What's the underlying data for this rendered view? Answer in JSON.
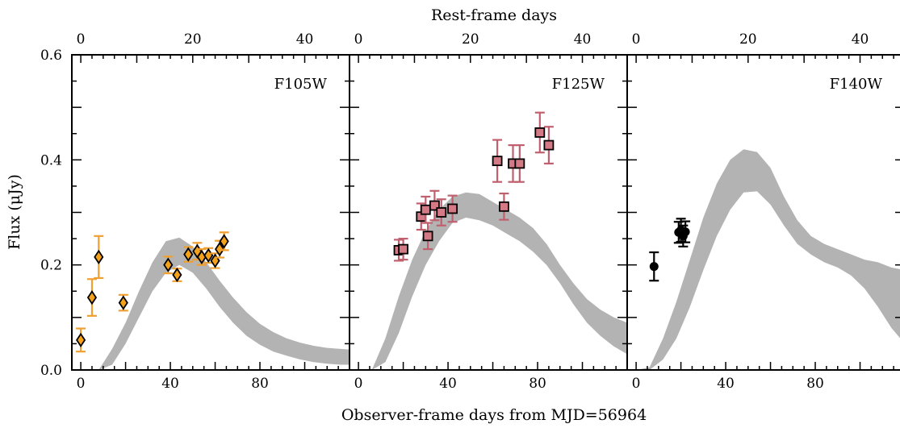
{
  "chart_data": {
    "type": "scatter",
    "xlabel": "Observer-frame days from MJD=56964",
    "xlabel_top": "Rest-frame days",
    "ylabel": "Flux (μJy)",
    "ylim": [
      0.0,
      0.6
    ],
    "yticks": [
      0.0,
      0.2,
      0.4,
      0.6
    ],
    "ytick_labels": [
      "0.0",
      "0.2",
      "0.4",
      "0.6"
    ],
    "xlim": [
      -4,
      120
    ],
    "xticks": [
      0,
      40,
      80
    ],
    "xtick_labels": [
      "0",
      "40",
      "80"
    ],
    "rest_frame_factor": 0.4,
    "xticks_top": [
      0,
      20,
      40
    ],
    "xtick_top_labels": [
      "0",
      "20",
      "40"
    ],
    "panels": [
      {
        "label": "F105W",
        "marker": "diamond",
        "marker_color": "#f5a21b",
        "errorbar_color": "#f0a030",
        "points": [
          {
            "x": 0,
            "y": 0.057,
            "err": 0.022
          },
          {
            "x": 5,
            "y": 0.138,
            "err": 0.035
          },
          {
            "x": 8,
            "y": 0.215,
            "err": 0.04
          },
          {
            "x": 19,
            "y": 0.128,
            "err": 0.015
          },
          {
            "x": 39,
            "y": 0.2,
            "err": 0.016
          },
          {
            "x": 43,
            "y": 0.181,
            "err": 0.012
          },
          {
            "x": 48,
            "y": 0.22,
            "err": 0.014
          },
          {
            "x": 52,
            "y": 0.226,
            "err": 0.016
          },
          {
            "x": 54,
            "y": 0.215,
            "err": 0.015
          },
          {
            "x": 57,
            "y": 0.218,
            "err": 0.014
          },
          {
            "x": 60,
            "y": 0.208,
            "err": 0.014
          },
          {
            "x": 62,
            "y": 0.23,
            "err": 0.016
          },
          {
            "x": 64,
            "y": 0.245,
            "err": 0.017
          }
        ],
        "model_band": {
          "x": [
            0,
            8,
            14,
            20,
            26,
            32,
            38,
            44,
            50,
            56,
            62,
            68,
            74,
            80,
            86,
            92,
            98,
            104,
            110,
            116,
            120
          ],
          "lower": [
            0.0,
            0.0,
            0.01,
            0.05,
            0.1,
            0.15,
            0.185,
            0.2,
            0.185,
            0.155,
            0.12,
            0.09,
            0.065,
            0.048,
            0.035,
            0.027,
            0.02,
            0.015,
            0.012,
            0.01,
            0.01
          ],
          "upper": [
            0.0,
            0.0,
            0.04,
            0.09,
            0.15,
            0.205,
            0.245,
            0.252,
            0.235,
            0.205,
            0.17,
            0.138,
            0.11,
            0.088,
            0.072,
            0.06,
            0.052,
            0.046,
            0.042,
            0.04,
            0.039
          ]
        }
      },
      {
        "label": "F125W",
        "marker": "square",
        "marker_color": "#d47a86",
        "errorbar_color": "#c0606e",
        "points": [
          {
            "x": 18,
            "y": 0.228,
            "err": 0.02
          },
          {
            "x": 20,
            "y": 0.23,
            "err": 0.02
          },
          {
            "x": 28,
            "y": 0.292,
            "err": 0.025
          },
          {
            "x": 30,
            "y": 0.305,
            "err": 0.025
          },
          {
            "x": 31,
            "y": 0.255,
            "err": 0.025
          },
          {
            "x": 34,
            "y": 0.313,
            "err": 0.028
          },
          {
            "x": 37,
            "y": 0.3,
            "err": 0.025
          },
          {
            "x": 42,
            "y": 0.307,
            "err": 0.025
          },
          {
            "x": 62,
            "y": 0.398,
            "err": 0.04
          },
          {
            "x": 65,
            "y": 0.311,
            "err": 0.025
          },
          {
            "x": 69,
            "y": 0.393,
            "err": 0.035
          },
          {
            "x": 72,
            "y": 0.393,
            "err": 0.035
          },
          {
            "x": 81,
            "y": 0.452,
            "err": 0.038
          },
          {
            "x": 85,
            "y": 0.428,
            "err": 0.035
          }
        ],
        "model_band": {
          "x": [
            0,
            6,
            12,
            18,
            24,
            30,
            36,
            42,
            48,
            54,
            60,
            66,
            72,
            78,
            84,
            90,
            96,
            102,
            108,
            114,
            120
          ],
          "lower": [
            0.0,
            0.0,
            0.015,
            0.07,
            0.14,
            0.2,
            0.245,
            0.28,
            0.29,
            0.285,
            0.275,
            0.26,
            0.245,
            0.225,
            0.2,
            0.165,
            0.125,
            0.09,
            0.065,
            0.045,
            0.03
          ],
          "upper": [
            0.0,
            0.0,
            0.06,
            0.14,
            0.21,
            0.265,
            0.305,
            0.33,
            0.338,
            0.335,
            0.32,
            0.305,
            0.29,
            0.27,
            0.24,
            0.2,
            0.165,
            0.135,
            0.115,
            0.1,
            0.09
          ]
        }
      },
      {
        "label": "F140W",
        "marker": "circle",
        "marker_color": "#000000",
        "errorbar_color": "#000000",
        "points": [
          {
            "x": 8,
            "y": 0.197,
            "err": 0.027
          },
          {
            "x": 19,
            "y": 0.262,
            "err": 0.02
          },
          {
            "x": 20,
            "y": 0.266,
            "err": 0.022
          },
          {
            "x": 21,
            "y": 0.255,
            "err": 0.02
          },
          {
            "x": 22,
            "y": 0.263,
            "err": 0.02
          }
        ],
        "model_band": {
          "x": [
            0,
            6,
            12,
            18,
            24,
            30,
            36,
            42,
            48,
            54,
            60,
            66,
            72,
            78,
            84,
            90,
            96,
            102,
            108,
            114,
            120
          ],
          "lower": [
            0.0,
            0.0,
            0.02,
            0.06,
            0.12,
            0.19,
            0.255,
            0.305,
            0.338,
            0.34,
            0.315,
            0.275,
            0.24,
            0.22,
            0.205,
            0.195,
            0.18,
            0.155,
            0.12,
            0.08,
            0.05
          ],
          "upper": [
            0.0,
            0.005,
            0.06,
            0.13,
            0.21,
            0.29,
            0.355,
            0.4,
            0.42,
            0.415,
            0.385,
            0.33,
            0.285,
            0.255,
            0.24,
            0.23,
            0.22,
            0.21,
            0.205,
            0.195,
            0.19
          ]
        }
      }
    ],
    "band_color": "#b3b3b3"
  }
}
